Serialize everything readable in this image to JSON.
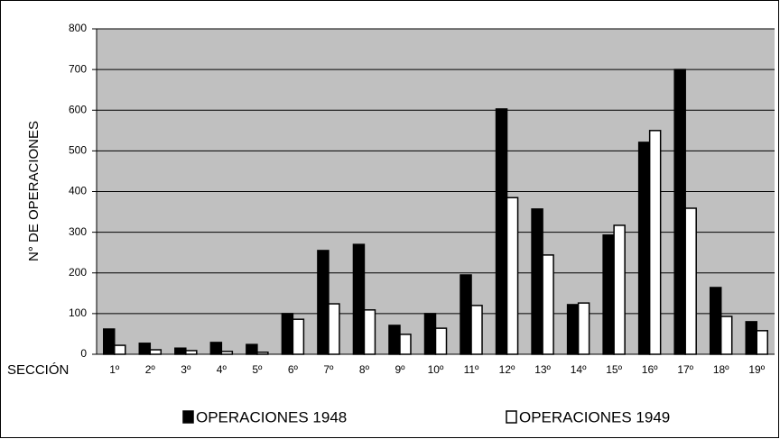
{
  "chart_data": {
    "type": "bar",
    "y_label": "N° DE OPERACIONES",
    "x_label": "SECCIÓN",
    "categories": [
      "1º",
      "2º",
      "3º",
      "4º",
      "5º",
      "6º",
      "7º",
      "8º",
      "9º",
      "10º",
      "11º",
      "12º",
      "13º",
      "14º",
      "15º",
      "16º",
      "17º",
      "18º",
      "19º"
    ],
    "series": [
      {
        "name": "OPERACIONES 1948",
        "color": "#000000",
        "values": [
          62,
          27,
          15,
          29,
          24,
          100,
          255,
          270,
          71,
          100,
          195,
          603,
          357,
          122,
          293,
          521,
          700,
          164,
          80
        ]
      },
      {
        "name": "OPERACIONES 1949",
        "color": "#ffffff",
        "values": [
          22,
          11,
          9,
          7,
          5,
          86,
          124,
          109,
          49,
          64,
          120,
          385,
          244,
          126,
          317,
          550,
          359,
          93,
          58
        ]
      }
    ],
    "ylim": [
      0,
      800
    ],
    "yticks": [
      0,
      100,
      200,
      300,
      400,
      500,
      600,
      700,
      800
    ],
    "grid": true,
    "legend": "bottom"
  }
}
